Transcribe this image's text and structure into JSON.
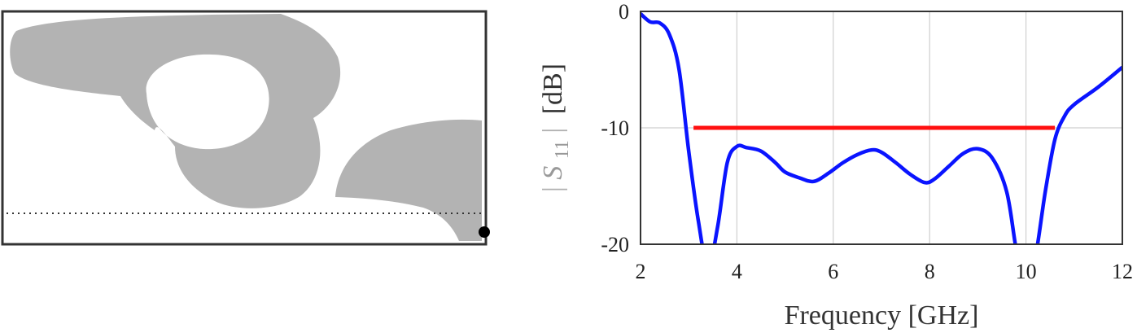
{
  "colors": {
    "shape_fill": "#b3b3b3",
    "frame": "#333333",
    "curve": "#0a14ff",
    "threshold": "#ff1010",
    "grid": "#cfcfcf"
  },
  "chart_data": {
    "type": "line",
    "xlabel": "Frequency [GHz]",
    "ylabel": {
      "symbol": "S",
      "subscript": "11",
      "unit": "[dB]"
    },
    "xlim": [
      2,
      12
    ],
    "ylim": [
      -20,
      0
    ],
    "xticks": [
      2,
      4,
      6,
      8,
      10,
      12
    ],
    "yticks": [
      0,
      -10,
      -20
    ],
    "grid": true,
    "series": [
      {
        "values": [
          [
            2.0,
            -0.2
          ],
          [
            2.2,
            -0.9
          ],
          [
            2.4,
            -1.0
          ],
          [
            2.6,
            -2.0
          ],
          [
            2.8,
            -5.0
          ],
          [
            3.0,
            -12.0
          ],
          [
            3.2,
            -18.0
          ],
          [
            3.4,
            -22.0
          ],
          [
            3.6,
            -18.5
          ],
          [
            3.8,
            -13.0
          ],
          [
            4.0,
            -11.6
          ],
          [
            4.2,
            -11.7
          ],
          [
            4.5,
            -12.0
          ],
          [
            4.8,
            -13.0
          ],
          [
            5.0,
            -13.8
          ],
          [
            5.3,
            -14.3
          ],
          [
            5.6,
            -14.6
          ],
          [
            5.9,
            -13.9
          ],
          [
            6.2,
            -13.0
          ],
          [
            6.5,
            -12.3
          ],
          [
            6.8,
            -11.9
          ],
          [
            7.0,
            -12.1
          ],
          [
            7.3,
            -13.0
          ],
          [
            7.6,
            -14.0
          ],
          [
            7.9,
            -14.7
          ],
          [
            8.1,
            -14.4
          ],
          [
            8.4,
            -13.3
          ],
          [
            8.7,
            -12.2
          ],
          [
            9.0,
            -11.8
          ],
          [
            9.3,
            -12.6
          ],
          [
            9.6,
            -15.5
          ],
          [
            9.8,
            -20.5
          ],
          [
            10.0,
            -24.0
          ],
          [
            10.2,
            -21.0
          ],
          [
            10.4,
            -15.5
          ],
          [
            10.6,
            -11.0
          ],
          [
            10.8,
            -9.0
          ],
          [
            11.0,
            -8.0
          ],
          [
            11.5,
            -6.5
          ],
          [
            12.0,
            -4.8
          ]
        ]
      },
      {
        "values": [
          [
            3.1,
            -10
          ],
          [
            10.6,
            -10
          ]
        ]
      }
    ]
  }
}
